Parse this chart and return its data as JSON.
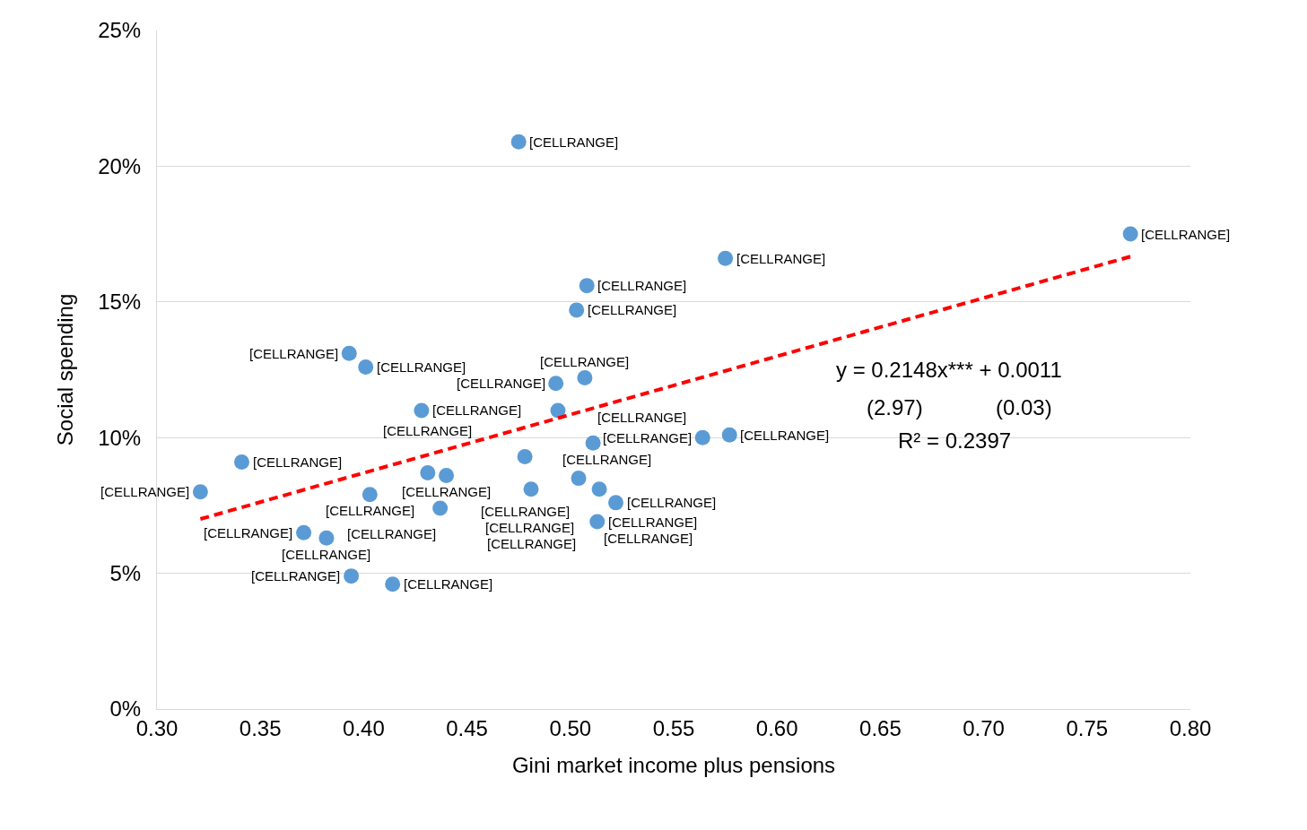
{
  "chart_data": {
    "type": "scatter",
    "xlabel": "Gini market income plus pensions",
    "ylabel": "Social spending",
    "x": [
      0.475,
      0.771,
      0.575,
      0.508,
      0.503,
      0.393,
      0.401,
      0.493,
      0.507,
      0.428,
      0.494,
      0.564,
      0.577,
      0.511,
      0.341,
      0.478,
      0.431,
      0.44,
      0.504,
      0.321,
      0.403,
      0.481,
      0.514,
      0.437,
      0.522,
      0.513,
      0.371,
      0.382,
      0.394,
      0.414
    ],
    "series": [
      {
        "color": "#5b9bd5",
        "values": [
          0.209,
          0.175,
          0.166,
          0.156,
          0.147,
          0.131,
          0.126,
          0.12,
          0.122,
          0.11,
          0.11,
          0.1,
          0.101,
          0.098,
          0.091,
          0.093,
          0.087,
          0.086,
          0.085,
          0.08,
          0.079,
          0.081,
          0.081,
          0.074,
          0.076,
          0.069,
          0.065,
          0.063,
          0.049,
          0.046
        ],
        "value_labels": [
          "[CELLRANGE]",
          "[CELLRANGE]",
          "[CELLRANGE]",
          "[CELLRANGE]",
          "[CELLRANGE]",
          "[CELLRANGE]",
          "[CELLRANGE]",
          "[CELLRANGE]",
          "[CELLRANGE]",
          "[CELLRANGE]",
          "[CELLRANGE]",
          "[CELLRANGE]",
          "[CELLRANGE]",
          "[CELLRANGE]",
          "[CELLRANGE]",
          "[CELLRANGE]",
          "[CELLRANGE]",
          "[CELLRANGE]",
          "[CELLRANGE]",
          "[CELLRANGE]",
          "[CELLRANGE]",
          "[CELLRANGE]",
          "[CELLRANGE]",
          "[CELLRANGE]",
          "[CELLRANGE]",
          "[CELLRANGE]",
          "[CELLRANGE]",
          "[CELLRANGE]",
          "[CELLRANGE]",
          "[CELLRANGE]"
        ]
      },
      {
        "type": "line",
        "color": "#ff0000",
        "line_style": "dashed",
        "marker": "none",
        "x": [
          0.321,
          0.771
        ],
        "values": [
          0.07,
          0.1667
        ]
      }
    ],
    "annotations": [
      "y = 0.2148x*** + 0.0011",
      "(2.97)",
      "(0.03)",
      "R² = 0.2397"
    ],
    "xlim": [
      0.3,
      0.8
    ],
    "xticks": [
      {
        "value": 0.3,
        "label": "0.30"
      },
      {
        "value": 0.35,
        "label": "0.35"
      },
      {
        "value": 0.4,
        "label": "0.40"
      },
      {
        "value": 0.45,
        "label": "0.45"
      },
      {
        "value": 0.5,
        "label": "0.50"
      },
      {
        "value": 0.55,
        "label": "0.55"
      },
      {
        "value": 0.6,
        "label": "0.60"
      },
      {
        "value": 0.65,
        "label": "0.65"
      },
      {
        "value": 0.7,
        "label": "0.70"
      },
      {
        "value": 0.75,
        "label": "0.75"
      },
      {
        "value": 0.8,
        "label": "0.80"
      }
    ],
    "ylim": [
      0,
      0.25
    ],
    "yticks": [
      {
        "value": 0,
        "label": "0%"
      },
      {
        "value": 0.05,
        "label": "5%"
      },
      {
        "value": 0.1,
        "label": "10%"
      },
      {
        "value": 0.15,
        "label": "15%"
      },
      {
        "value": 0.2,
        "label": "20%"
      },
      {
        "value": 0.25,
        "label": "25%"
      }
    ],
    "grid": "y",
    "legend": false,
    "marker": "circle"
  }
}
